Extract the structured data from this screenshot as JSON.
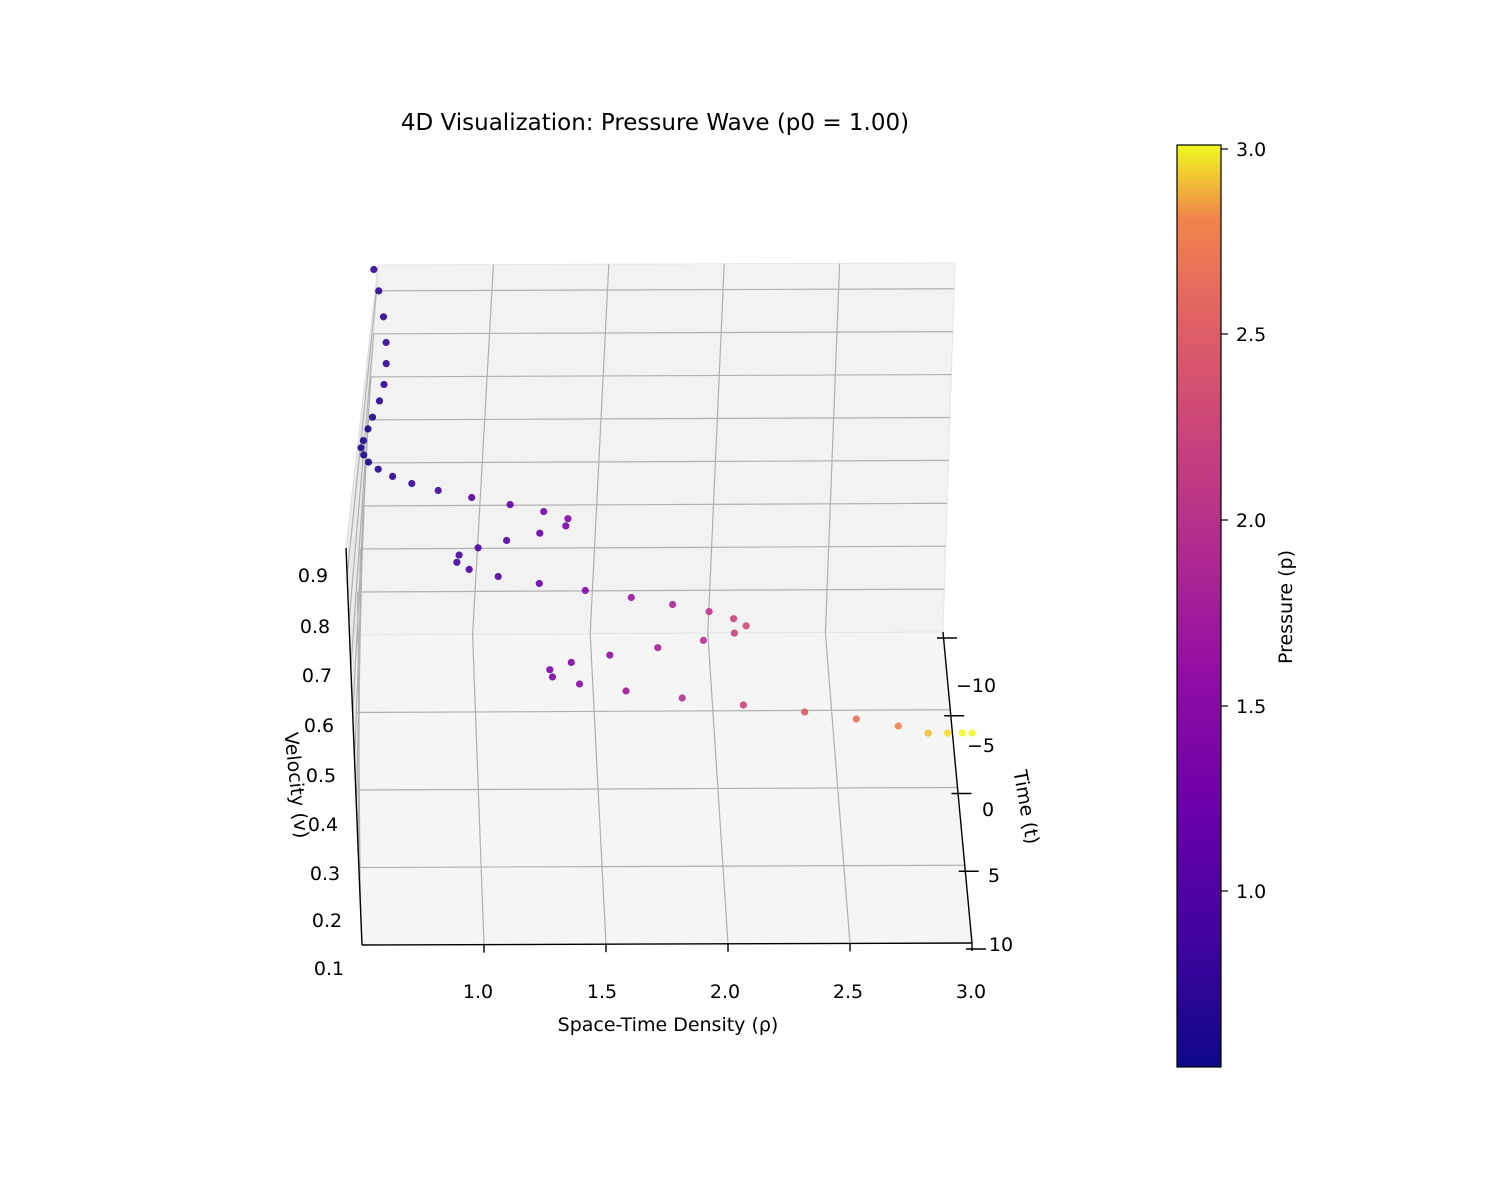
{
  "chart_data": {
    "type": "scatter",
    "title": "4D Visualization: Pressure Wave (p0 = 1.00)",
    "xlabel": "Space-Time Density (ρ)",
    "ylabel": "Time (t)",
    "zlabel": "Velocity (v)",
    "colorbar_label": "Pressure (p)",
    "colormap": "plasma",
    "x_ticks": [
      "1.0",
      "1.5",
      "2.0",
      "2.5",
      "3.0"
    ],
    "y_ticks": [
      "−10",
      "−5",
      "0",
      "5",
      "10"
    ],
    "z_ticks": [
      "0.1",
      "0.2",
      "0.3",
      "0.4",
      "0.5",
      "0.6",
      "0.7",
      "0.8",
      "0.9"
    ],
    "colorbar_ticks": [
      "1.0",
      "1.5",
      "2.0",
      "2.5",
      "3.0"
    ],
    "xlim": [
      0.5,
      3.0
    ],
    "ylim": [
      -10,
      10
    ],
    "zlim": [
      0.1,
      0.9
    ],
    "color_range": [
      0.5,
      3.0
    ],
    "grid": true,
    "series": [
      {
        "comment_free": true,
        "x": [
          0.58,
          0.6,
          0.62,
          0.63,
          0.63,
          0.62,
          0.6,
          0.57,
          0.55,
          0.53,
          0.52,
          0.53,
          0.55,
          0.59,
          0.65,
          0.73,
          0.84,
          0.98,
          1.14,
          1.28,
          1.38,
          1.37,
          1.26,
          1.12,
          1.0,
          0.92,
          0.91,
          0.96,
          1.08,
          1.25,
          1.44,
          1.63,
          1.8,
          1.95,
          2.05,
          2.1,
          2.05,
          1.92,
          1.73,
          1.53,
          1.37,
          1.28,
          1.29,
          1.4,
          1.59,
          1.82,
          2.07,
          2.32,
          2.53,
          2.7,
          2.82,
          2.9,
          2.96,
          3.0
        ],
        "y": [
          -10,
          -9.6,
          -9.2,
          -8.8,
          -8.4,
          -8.0,
          -7.6,
          -7.2,
          -6.8,
          -6.4,
          -6.0,
          -5.6,
          -5.2,
          -4.8,
          -4.4,
          -4.0,
          -3.6,
          -3.2,
          -2.8,
          -2.4,
          -2.0,
          -1.6,
          -1.2,
          -0.8,
          -0.4,
          0.0,
          0.4,
          0.8,
          1.2,
          1.6,
          2.0,
          2.4,
          2.8,
          3.2,
          3.6,
          4.0,
          4.4,
          4.8,
          5.2,
          5.6,
          6.0,
          6.4,
          6.8,
          7.2,
          7.6,
          8.0,
          8.4,
          8.8,
          9.2,
          9.6,
          10.0,
          10.0,
          10.0,
          10.0
        ],
        "z": [
          0.89,
          0.86,
          0.82,
          0.78,
          0.75,
          0.72,
          0.7,
          0.68,
          0.67,
          0.66,
          0.66,
          0.66,
          0.66,
          0.66,
          0.66,
          0.66,
          0.66,
          0.66,
          0.66,
          0.66,
          0.66,
          0.66,
          0.66,
          0.66,
          0.66,
          0.66,
          0.66,
          0.66,
          0.66,
          0.66,
          0.66,
          0.66,
          0.66,
          0.66,
          0.66,
          0.66,
          0.66,
          0.66,
          0.66,
          0.66,
          0.66,
          0.66,
          0.66,
          0.66,
          0.66,
          0.66,
          0.66,
          0.66,
          0.66,
          0.66,
          0.66,
          0.66,
          0.66,
          0.66
        ],
        "p": [
          0.7,
          0.7,
          0.7,
          0.7,
          0.7,
          0.7,
          0.65,
          0.6,
          0.6,
          0.6,
          0.6,
          0.6,
          0.6,
          0.65,
          0.7,
          0.8,
          0.9,
          1.0,
          1.15,
          1.3,
          1.4,
          1.35,
          1.2,
          1.05,
          0.95,
          0.9,
          0.9,
          0.95,
          1.05,
          1.25,
          1.45,
          1.65,
          1.85,
          2.05,
          2.2,
          2.3,
          2.2,
          2.0,
          1.8,
          1.6,
          1.45,
          1.4,
          1.4,
          1.5,
          1.7,
          1.95,
          2.2,
          2.45,
          2.65,
          2.8,
          2.9,
          2.95,
          3.0,
          3.0
        ]
      }
    ]
  }
}
